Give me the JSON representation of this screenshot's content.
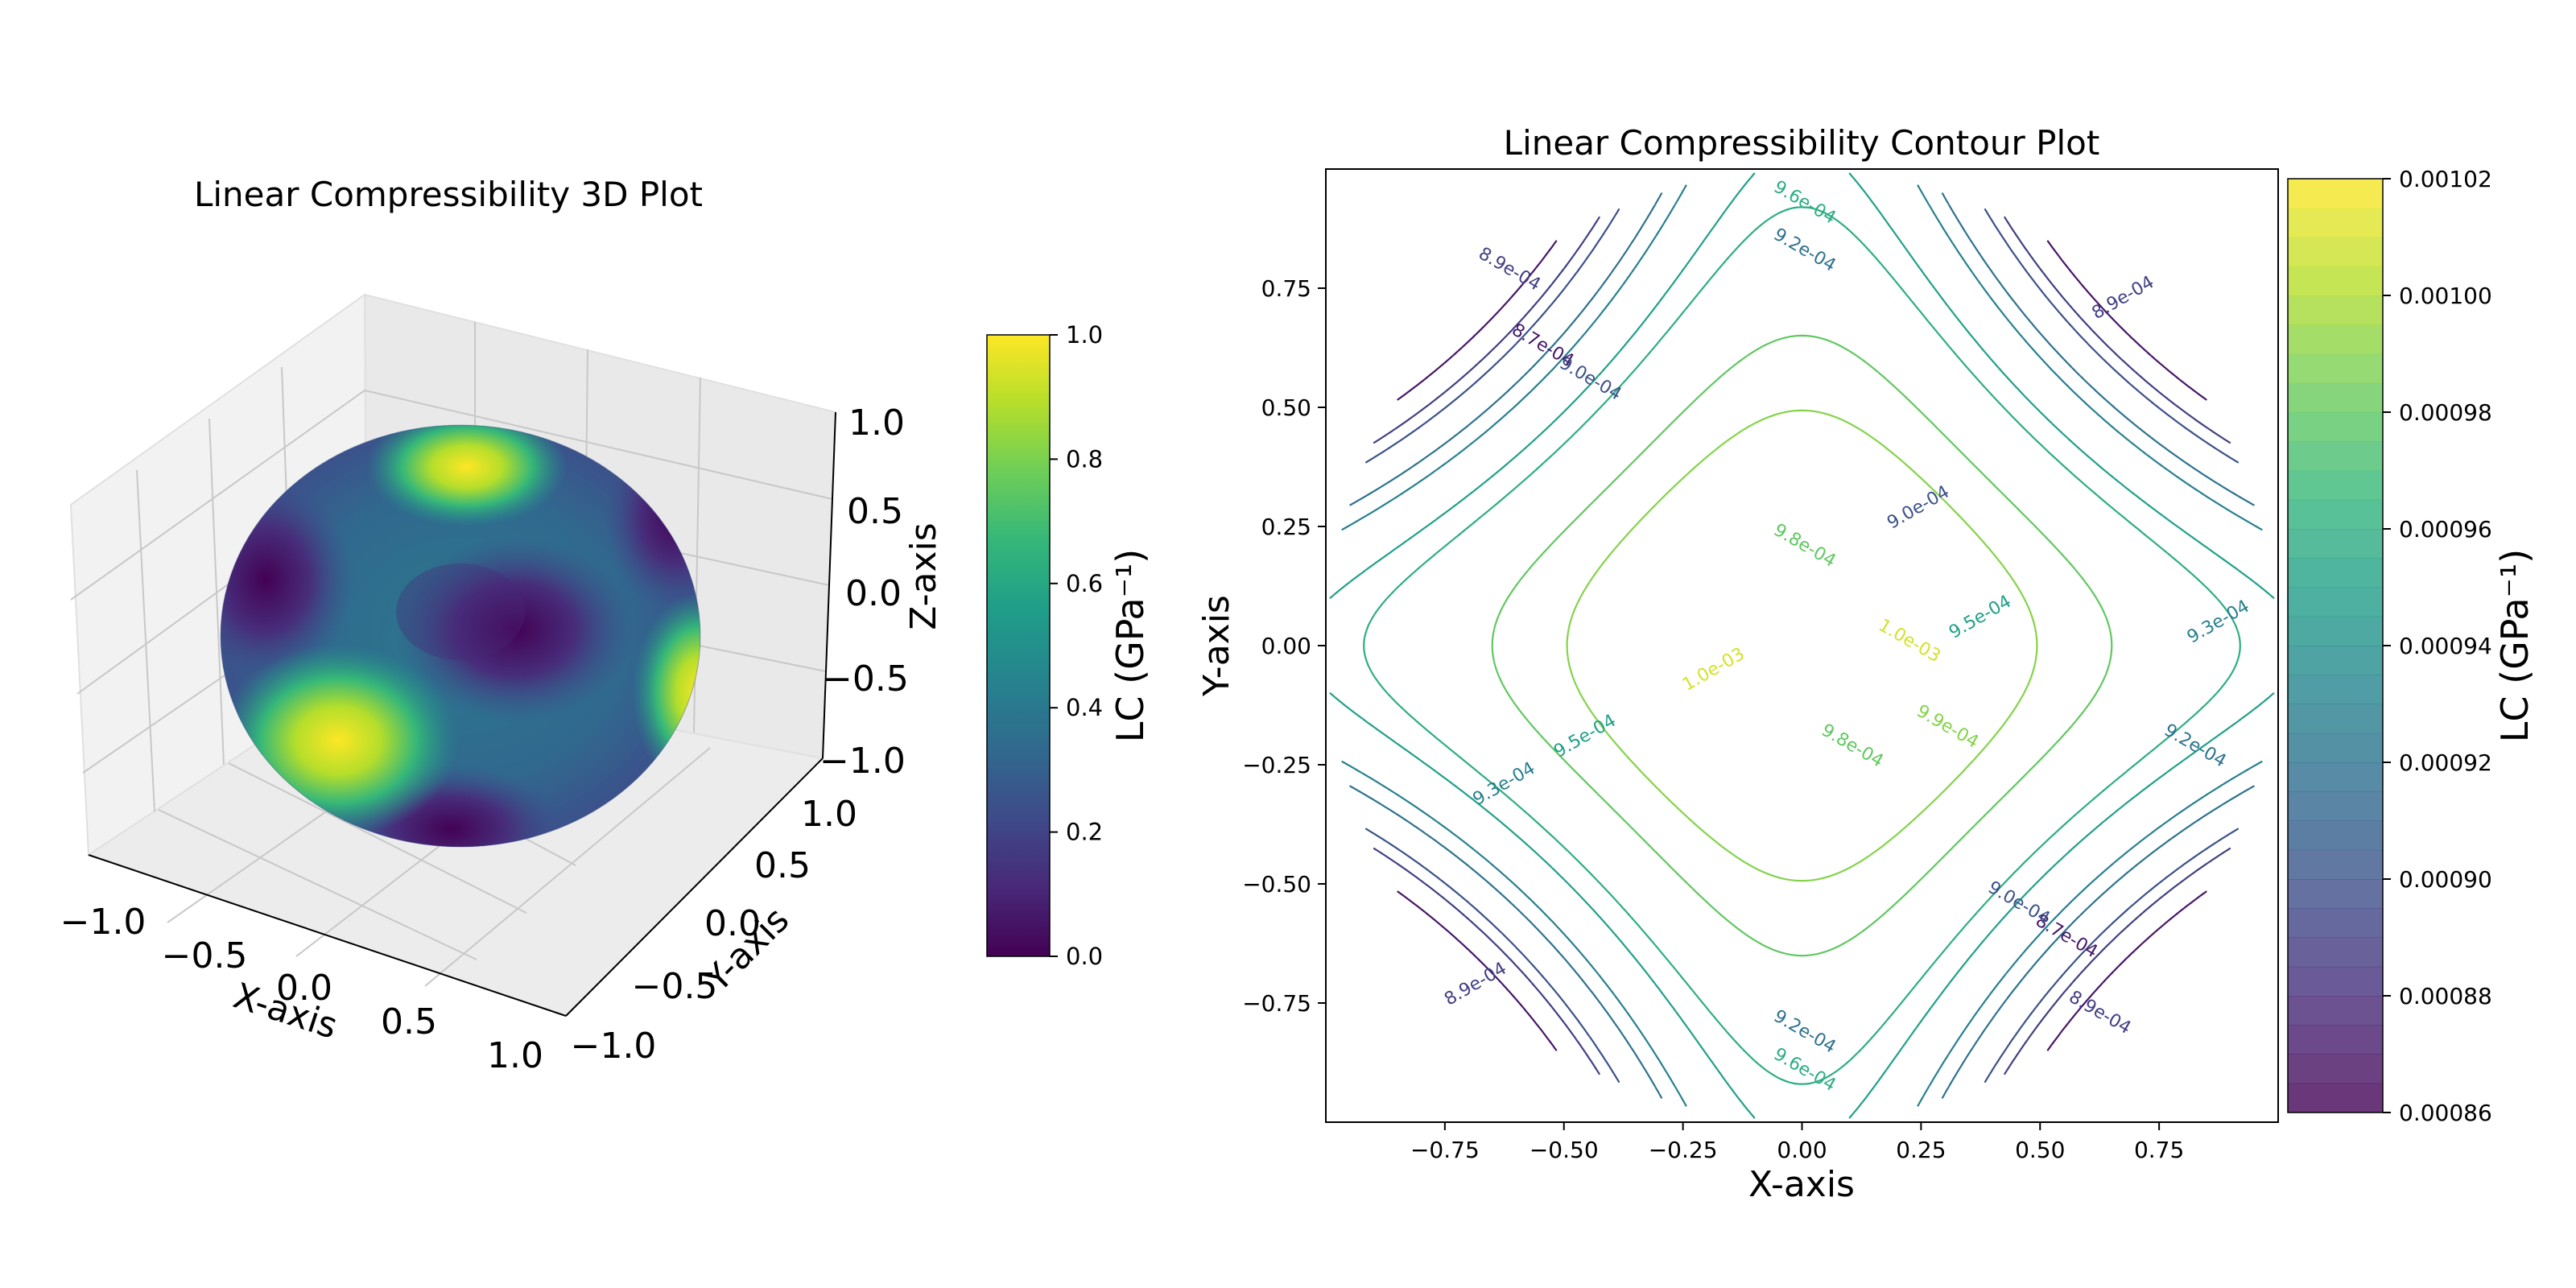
{
  "chart_data": [
    {
      "type": "surface3d",
      "title": "Linear Compressibility 3D Plot",
      "xlabel": "X-axis",
      "ylabel": "Y-axis",
      "zlabel": "Z-axis",
      "x_ticks": [
        "−1.0",
        "−0.5",
        "0.0",
        "0.5",
        "1.0"
      ],
      "y_ticks": [
        "−1.0",
        "−0.5",
        "0.0",
        "0.5",
        "1.0"
      ],
      "z_ticks": [
        "−1.0",
        "−0.5",
        "0.0",
        "0.5",
        "1.0"
      ],
      "xlim": [
        -1,
        1
      ],
      "ylim": [
        -1,
        1
      ],
      "zlim": [
        -1,
        1
      ],
      "surface": "unit sphere colored by normalized LC",
      "colormap": "viridis",
      "colorbar": {
        "label": "LC (GPa⁻¹)",
        "range": [
          0.0,
          1.0
        ],
        "ticks": [
          "0.0",
          "0.2",
          "0.4",
          "0.6",
          "0.8",
          "1.0"
        ]
      },
      "grid": true
    },
    {
      "type": "contour",
      "title": "Linear Compressibility Contour Plot",
      "xlabel": "X-axis",
      "ylabel": "Y-axis",
      "x_ticks": [
        "−0.75",
        "−0.50",
        "−0.25",
        "0.00",
        "0.25",
        "0.50",
        "0.75"
      ],
      "y_ticks": [
        "−0.75",
        "−0.50",
        "−0.25",
        "0.00",
        "0.25",
        "0.50",
        "0.75"
      ],
      "xlim": [
        -1,
        1
      ],
      "ylim": [
        -1,
        1
      ],
      "levels": [
        0.00087,
        0.00089,
        0.0009,
        0.00092,
        0.00093,
        0.00095,
        0.00096,
        0.00098,
        0.00099,
        0.00101
      ],
      "contour_labels": [
        "8.7e-04",
        "8.9e-04",
        "9.0e-04",
        "9.2e-04",
        "9.3e-04",
        "9.5e-04",
        "9.6e-04",
        "9.8e-04",
        "9.9e-04",
        "1.0e-03"
      ],
      "colormap": "viridis",
      "colorbar": {
        "label": "LC (GPa⁻¹)",
        "range": [
          0.00086,
          0.00102
        ],
        "ticks": [
          "0.00086",
          "0.00088",
          "0.00090",
          "0.00092",
          "0.00094",
          "0.00096",
          "0.00098",
          "0.00100",
          "0.00102"
        ]
      },
      "grid": false
    }
  ],
  "colors": {
    "viridis": [
      "#440154",
      "#482878",
      "#3e4a89",
      "#31688e",
      "#26828e",
      "#1f9e89",
      "#35b779",
      "#6ece58",
      "#b5de2b",
      "#fde725"
    ]
  }
}
